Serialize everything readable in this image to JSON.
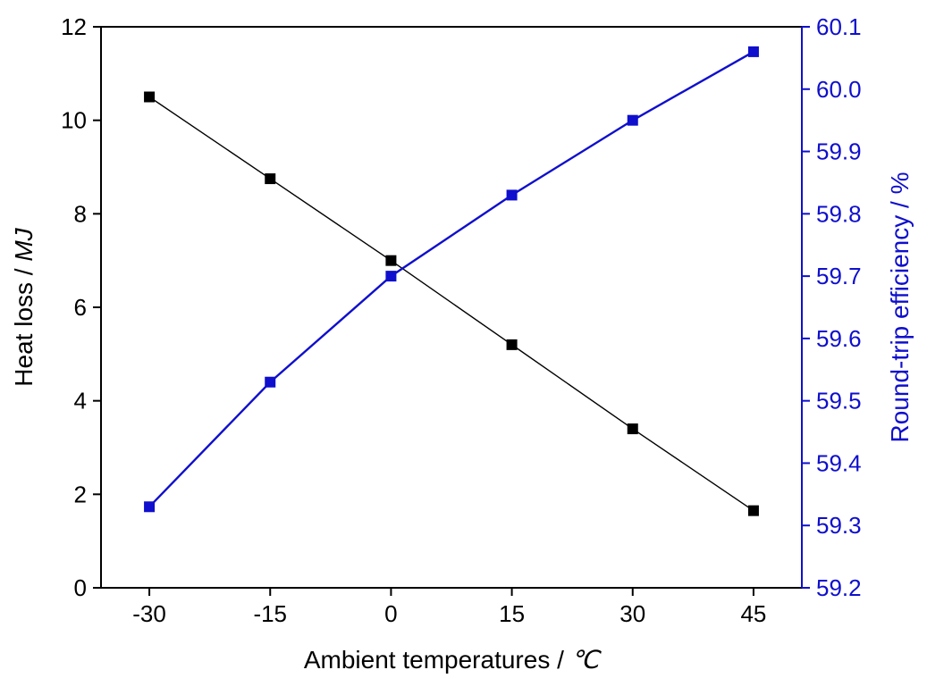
{
  "figure": {
    "background": "#ffffff"
  },
  "chart_data": {
    "type": "line",
    "title": "",
    "grid": false,
    "legend": "none",
    "x": [
      -30,
      -15,
      0,
      15,
      30,
      45
    ],
    "xticks": [
      "-30",
      "-15",
      "0",
      "15",
      "30",
      "45"
    ],
    "xlim": [
      -36,
      51
    ],
    "xlabel": "Ambient temperatures / ℃",
    "xlabel_parts": [
      {
        "text": "Ambient temperatures / ",
        "italic": false
      },
      {
        "text": "℃",
        "italic": true
      }
    ],
    "left_axis": {
      "label": "Heat loss / MJ",
      "label_parts": [
        {
          "text": "Heat loss / ",
          "italic": false
        },
        {
          "text": "MJ",
          "italic": true
        }
      ],
      "color": "#000000",
      "lim": [
        0,
        12
      ],
      "ticks": [
        "0",
        "2",
        "4",
        "6",
        "8",
        "10",
        "12"
      ]
    },
    "right_axis": {
      "label": "Round-trip efficiency / %",
      "color": "#0f0fcd",
      "lim": [
        59.2,
        60.1
      ],
      "ticks": [
        "59.2",
        "59.3",
        "59.4",
        "59.5",
        "59.6",
        "59.7",
        "59.8",
        "59.9",
        "60.0",
        "60.1"
      ]
    },
    "series": [
      {
        "name": "Heat loss",
        "axis": "left",
        "color": "#000000",
        "marker": "square",
        "line_width": 1.4,
        "values": [
          10.5,
          8.75,
          7.0,
          5.2,
          3.4,
          1.65
        ]
      },
      {
        "name": "Round-trip efficiency",
        "axis": "right",
        "color": "#0f0fcd",
        "marker": "square",
        "line_width": 2.4,
        "values": [
          59.33,
          59.53,
          59.7,
          59.83,
          59.95,
          60.06
        ]
      }
    ]
  }
}
